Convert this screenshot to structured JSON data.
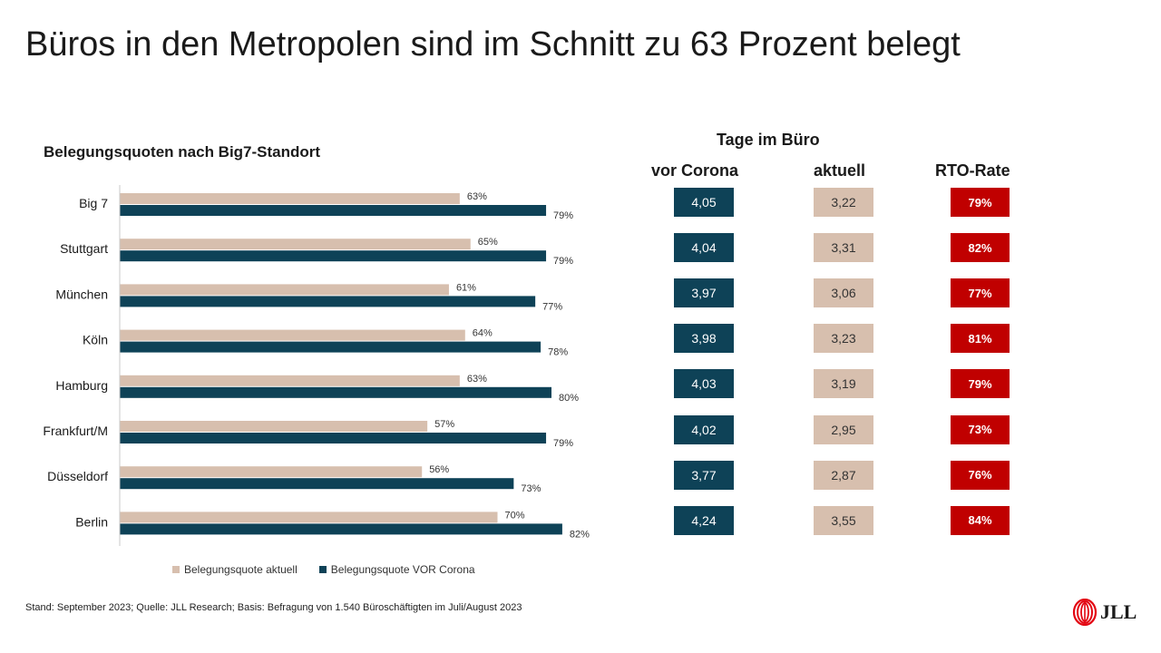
{
  "title": "Büros in den Metropolen sind im Schnitt zu 63 Prozent belegt",
  "chart_data": {
    "type": "bar",
    "orientation": "horizontal",
    "title": "Belegungsquoten nach Big7-Standort",
    "categories": [
      "Big 7",
      "Stuttgart",
      "München",
      "Köln",
      "Hamburg",
      "Frankfurt/M",
      "Düsseldorf",
      "Berlin"
    ],
    "series": [
      {
        "name": "Belegungsquote aktuell",
        "color": "#d7bfae",
        "values": [
          63,
          65,
          61,
          64,
          63,
          57,
          56,
          70
        ],
        "labels": [
          "63%",
          "65%",
          "61%",
          "64%",
          "63%",
          "57%",
          "56%",
          "70%"
        ]
      },
      {
        "name": "Belegungsquote VOR Corona",
        "color": "#0e4257",
        "values": [
          79,
          79,
          77,
          78,
          80,
          79,
          73,
          82
        ],
        "labels": [
          "79%",
          "79%",
          "77%",
          "78%",
          "80%",
          "79%",
          "73%",
          "82%"
        ]
      }
    ],
    "xlim": [
      0,
      100
    ],
    "grid": false,
    "legend": "bottom"
  },
  "table": {
    "header": "Tage im Büro",
    "columns": [
      "vor Corona",
      "aktuell",
      "RTO-Rate"
    ],
    "rows": [
      {
        "vor": "4,05",
        "akt": "3,22",
        "rto": "79%"
      },
      {
        "vor": "4,04",
        "akt": "3,31",
        "rto": "82%"
      },
      {
        "vor": "3,97",
        "akt": "3,06",
        "rto": "77%"
      },
      {
        "vor": "3,98",
        "akt": "3,23",
        "rto": "81%"
      },
      {
        "vor": "4,03",
        "akt": "3,19",
        "rto": "79%"
      },
      {
        "vor": "4,02",
        "akt": "2,95",
        "rto": "73%"
      },
      {
        "vor": "3,77",
        "akt": "2,87",
        "rto": "76%"
      },
      {
        "vor": "4,24",
        "akt": "3,55",
        "rto": "84%"
      }
    ]
  },
  "footer": "Stand: September 2023; Quelle: JLL Research; Basis: Befragung von 1.540 Büroschäftigten im Juli/August 2023",
  "logo": {
    "text": "JLL",
    "icon": "jll-logo-icon",
    "color": "#e30613"
  }
}
